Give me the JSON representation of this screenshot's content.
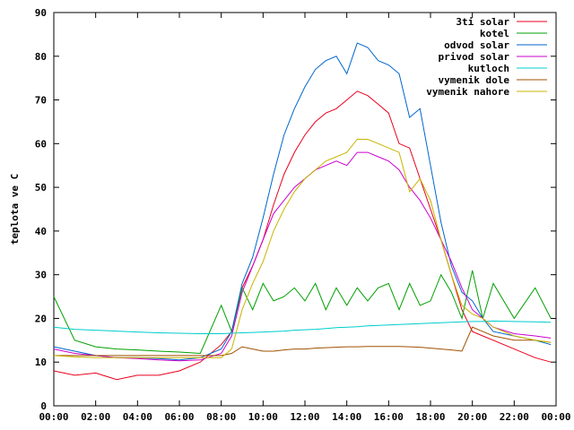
{
  "chart_data": {
    "type": "line",
    "title": "",
    "xlabel": "",
    "ylabel": "teplota ve C",
    "xlim": [
      "00:00",
      "00:00"
    ],
    "ylim": [
      0,
      90
    ],
    "x_ticks": [
      "00:00",
      "02:00",
      "04:00",
      "06:00",
      "08:00",
      "10:00",
      "12:00",
      "14:00",
      "16:00",
      "18:00",
      "20:00",
      "22:00",
      "00:00"
    ],
    "y_ticks": [
      0,
      10,
      20,
      30,
      40,
      50,
      60,
      70,
      80,
      90
    ],
    "grid": false,
    "legend_position": "top-right",
    "x": [
      "00:00",
      "01:00",
      "02:00",
      "03:00",
      "04:00",
      "05:00",
      "06:00",
      "07:00",
      "08:00",
      "08:30",
      "09:00",
      "09:30",
      "10:00",
      "10:30",
      "11:00",
      "11:30",
      "12:00",
      "12:30",
      "13:00",
      "13:30",
      "14:00",
      "14:30",
      "15:00",
      "15:30",
      "16:00",
      "16:30",
      "17:00",
      "17:30",
      "18:00",
      "18:30",
      "19:00",
      "19:30",
      "20:00",
      "20:30",
      "21:00",
      "22:00",
      "23:00",
      "23:45"
    ],
    "series": [
      {
        "name": "3ti solar",
        "color": "#e8001c",
        "values": [
          8,
          7,
          7.5,
          6,
          7,
          7,
          8,
          10,
          14,
          17,
          27,
          32,
          38,
          46,
          53,
          58,
          62,
          65,
          67,
          68,
          70,
          72,
          71,
          69,
          67,
          60,
          59,
          52,
          45,
          38,
          30,
          22,
          17,
          16,
          15,
          13,
          11,
          10
        ]
      },
      {
        "name": "kotel",
        "color": "#00a000",
        "values": [
          25,
          15,
          13.5,
          13,
          12.8,
          12.5,
          12.3,
          12,
          23,
          17,
          27,
          22,
          28,
          24,
          25,
          27,
          24,
          28,
          22,
          27,
          23,
          27,
          24,
          27,
          28,
          22,
          28,
          23,
          24,
          30,
          26,
          20,
          31,
          20,
          28,
          20,
          27,
          20
        ]
      },
      {
        "name": "odvod solar",
        "color": "#0066cc",
        "values": [
          13.5,
          12.5,
          11.5,
          11,
          11,
          10.8,
          10.5,
          11,
          13,
          17,
          28,
          34,
          43,
          53,
          62,
          68,
          73,
          77,
          79,
          80,
          76,
          83,
          82,
          79,
          78,
          76,
          66,
          68,
          55,
          42,
          32,
          26,
          24,
          20,
          17,
          16,
          15,
          14
        ]
      },
      {
        "name": "privod solar",
        "color": "#cc00cc",
        "values": [
          13,
          12,
          11.5,
          11,
          10.8,
          10.5,
          10.3,
          10.5,
          12,
          16,
          26,
          32,
          38,
          44,
          47,
          50,
          52,
          54,
          55,
          56,
          55,
          58,
          58,
          57,
          56,
          54,
          50,
          47,
          43,
          38,
          33,
          27,
          22,
          20,
          18,
          16.5,
          16,
          15.5
        ]
      },
      {
        "name": "kutloch",
        "color": "#00cccc",
        "values": [
          18,
          17.5,
          17.3,
          17.1,
          16.9,
          16.7,
          16.6,
          16.5,
          16.5,
          16.6,
          16.7,
          16.8,
          16.9,
          17,
          17.1,
          17.3,
          17.4,
          17.5,
          17.7,
          17.9,
          18,
          18.1,
          18.3,
          18.4,
          18.5,
          18.6,
          18.7,
          18.8,
          18.9,
          19,
          19.1,
          19.2,
          19.3,
          19.3,
          19.4,
          19.3,
          19.2,
          19.1
        ]
      },
      {
        "name": "vymenik dole",
        "color": "#a05000",
        "values": [
          11.5,
          11.5,
          11.5,
          11.5,
          11.5,
          11.5,
          11.5,
          11.5,
          11.5,
          12,
          13.5,
          13,
          12.5,
          12.5,
          12.8,
          13,
          13,
          13.2,
          13.3,
          13.4,
          13.5,
          13.5,
          13.6,
          13.6,
          13.6,
          13.6,
          13.5,
          13.4,
          13.2,
          13,
          12.8,
          12.5,
          18,
          17,
          16,
          15,
          15,
          14.5
        ]
      },
      {
        "name": "vymenik nahore",
        "color": "#c8b400",
        "values": [
          11.5,
          11.2,
          11,
          11,
          11,
          11,
          11,
          11,
          11,
          13,
          22,
          28,
          33,
          40,
          45,
          49,
          52,
          54,
          56,
          57,
          58,
          61,
          61,
          60,
          59,
          58,
          49,
          52,
          47,
          38,
          30,
          23,
          21,
          20,
          18,
          16,
          15,
          14.5
        ]
      }
    ]
  }
}
